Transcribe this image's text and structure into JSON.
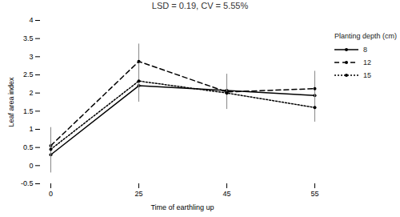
{
  "chart_data": {
    "type": "line",
    "title": "LSD = 0.19, CV = 5.55%",
    "x_label": "Time of earthling up",
    "y_label": "Leaf area index",
    "legend_title": "Planting depth (cm)",
    "legend": "right",
    "grid": false,
    "categories": [
      "0",
      "25",
      "45",
      "55"
    ],
    "ylim": [
      -0.5,
      4
    ],
    "yticks": [
      -0.5,
      0,
      0.5,
      1,
      1.5,
      2,
      2.5,
      3,
      3.5,
      4
    ],
    "series": [
      {
        "name": "8",
        "color": "#000000",
        "line_style": "solid",
        "marker": "circle",
        "values": [
          0.3,
          2.2,
          2.07,
          1.93
        ],
        "errors": [
          0.5,
          0.45,
          0.45,
          0.45
        ]
      },
      {
        "name": "12",
        "color": "#000000",
        "line_style": "dashed",
        "marker": "circle",
        "values": [
          0.55,
          2.87,
          2.03,
          2.12
        ],
        "errors": [
          0.5,
          0.48,
          0.45,
          0.48
        ]
      },
      {
        "name": "15",
        "color": "#000000",
        "line_style": "dotted",
        "marker": "circle",
        "values": [
          0.45,
          2.33,
          2.0,
          1.6
        ],
        "errors": [
          0.5,
          0.45,
          0.45,
          0.4
        ]
      }
    ]
  }
}
